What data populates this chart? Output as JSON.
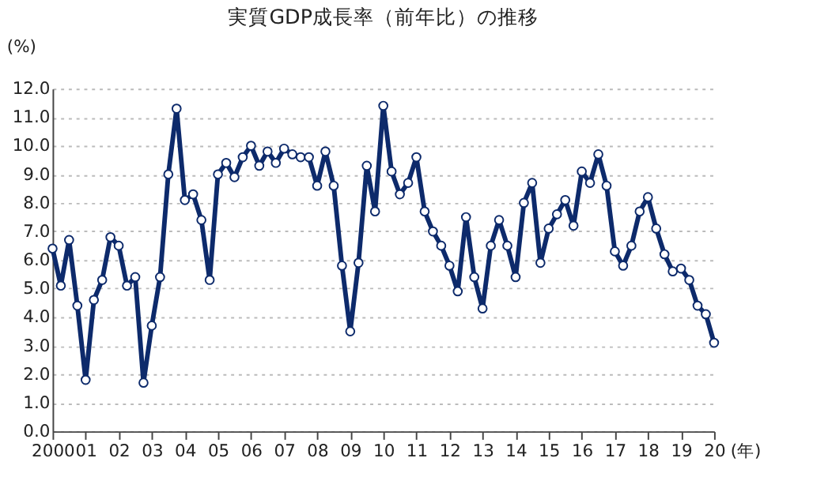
{
  "chart_data": {
    "type": "line",
    "title": "実質GDP成長率（前年比）の推移",
    "ylabel": "(%)",
    "xlabel": "(年)",
    "x": [
      2000,
      2000.25,
      2000.5,
      2000.75,
      2001,
      2001.25,
      2001.5,
      2001.75,
      2002,
      2002.25,
      2002.5,
      2002.75,
      2003,
      2003.25,
      2003.5,
      2003.75,
      2004,
      2004.25,
      2004.5,
      2004.75,
      2005,
      2005.25,
      2005.5,
      2005.75,
      2006,
      2006.25,
      2006.5,
      2006.75,
      2007,
      2007.25,
      2007.5,
      2007.75,
      2008,
      2008.25,
      2008.5,
      2008.75,
      2009,
      2009.25,
      2009.5,
      2009.75,
      2010,
      2010.25,
      2010.5,
      2010.75,
      2011,
      2011.25,
      2011.5,
      2011.75,
      2012,
      2012.25,
      2012.5,
      2012.75,
      2013,
      2013.25,
      2013.5,
      2013.75,
      2014,
      2014.25,
      2014.5,
      2014.75,
      2015,
      2015.25,
      2015.5,
      2015.75,
      2016,
      2016.25,
      2016.5,
      2016.75,
      2017,
      2017.25,
      2017.5,
      2017.75,
      2018,
      2018.25,
      2018.5,
      2018.75,
      2019,
      2019.25,
      2019.5,
      2019.75,
      2020
    ],
    "series": [
      {
        "color": "#0d2a6b",
        "values": [
          6.4,
          5.1,
          6.7,
          4.4,
          1.8,
          4.6,
          5.3,
          6.8,
          6.5,
          5.1,
          5.4,
          1.7,
          3.7,
          5.4,
          9.0,
          11.3,
          8.1,
          8.3,
          7.4,
          5.3,
          9.0,
          9.4,
          8.9,
          9.6,
          10.0,
          9.3,
          9.8,
          9.4,
          9.9,
          9.7,
          9.6,
          9.6,
          8.6,
          9.8,
          8.6,
          5.8,
          3.5,
          5.9,
          9.3,
          7.7,
          11.4,
          9.1,
          8.3,
          8.7,
          9.6,
          7.7,
          7.0,
          6.5,
          5.8,
          4.9,
          7.5,
          5.4,
          4.3,
          6.5,
          7.4,
          6.5,
          5.4,
          8.0,
          8.7,
          5.9,
          7.1,
          7.6,
          8.1,
          7.2,
          9.1,
          8.7,
          9.7,
          8.6,
          6.3,
          5.8,
          6.5,
          7.7,
          8.2,
          7.1,
          6.2,
          5.6,
          5.7,
          5.3,
          4.4,
          4.1,
          3.1
        ]
      }
    ],
    "xlim": [
      2000,
      2020
    ],
    "ylim": [
      0,
      12
    ],
    "xticks": [
      {
        "value": 2000,
        "label": "2000"
      },
      {
        "value": 2001,
        "label": "01"
      },
      {
        "value": 2002,
        "label": "02"
      },
      {
        "value": 2003,
        "label": "03"
      },
      {
        "value": 2004,
        "label": "04"
      },
      {
        "value": 2005,
        "label": "05"
      },
      {
        "value": 2006,
        "label": "06"
      },
      {
        "value": 2007,
        "label": "07"
      },
      {
        "value": 2008,
        "label": "08"
      },
      {
        "value": 2009,
        "label": "09"
      },
      {
        "value": 2010,
        "label": "10"
      },
      {
        "value": 2011,
        "label": "11"
      },
      {
        "value": 2012,
        "label": "12"
      },
      {
        "value": 2013,
        "label": "13"
      },
      {
        "value": 2014,
        "label": "14"
      },
      {
        "value": 2015,
        "label": "15"
      },
      {
        "value": 2016,
        "label": "16"
      },
      {
        "value": 2017,
        "label": "17"
      },
      {
        "value": 2018,
        "label": "18"
      },
      {
        "value": 2019,
        "label": "19"
      },
      {
        "value": 2020,
        "label": "20"
      }
    ],
    "yticks": [
      {
        "value": 0,
        "label": "0.0"
      },
      {
        "value": 1,
        "label": "1.0"
      },
      {
        "value": 2,
        "label": "2.0"
      },
      {
        "value": 3,
        "label": "3.0"
      },
      {
        "value": 4,
        "label": "4.0"
      },
      {
        "value": 5,
        "label": "5.0"
      },
      {
        "value": 6,
        "label": "6.0"
      },
      {
        "value": 7,
        "label": "7.0"
      },
      {
        "value": 8,
        "label": "8.0"
      },
      {
        "value": 9,
        "label": "9.0"
      },
      {
        "value": 10,
        "label": "10.0"
      },
      {
        "value": 11,
        "label": "11.0"
      },
      {
        "value": 12,
        "label": "12.0"
      }
    ],
    "grid": "y",
    "marker": "circle",
    "line_style": "solid"
  }
}
